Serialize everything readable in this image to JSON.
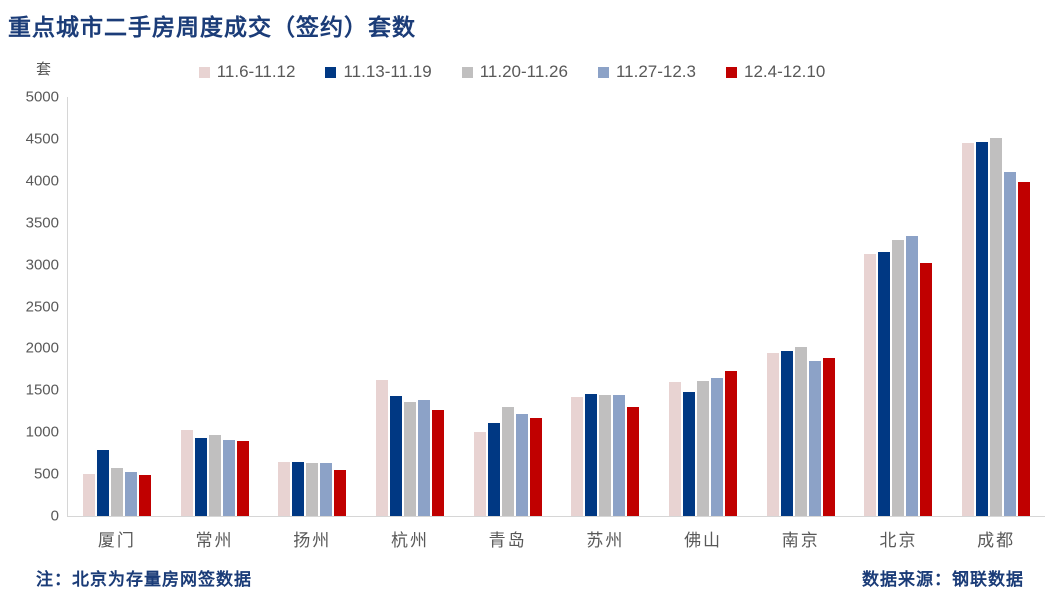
{
  "title": {
    "text": "重点城市二手房周度成交（签约）套数",
    "color": "#1b3c78"
  },
  "footer": {
    "note": "注：北京为存量房网签数据",
    "source": "数据来源：钢联数据"
  },
  "chart_data": {
    "type": "bar",
    "title": "重点城市二手房周度成交（签约）套数",
    "unit_label": "套",
    "xlabel": "",
    "ylabel": "套",
    "ylim": [
      0,
      5000
    ],
    "ytick_step": 500,
    "grid": false,
    "legend_position": "top",
    "categories": [
      "厦门",
      "常州",
      "扬州",
      "杭州",
      "青岛",
      "苏州",
      "佛山",
      "南京",
      "北京",
      "成都"
    ],
    "series": [
      {
        "name": "11.6-11.12",
        "color": "#e8d3d2",
        "values": [
          500,
          1030,
          645,
          1620,
          1000,
          1415,
          1600,
          1950,
          3130,
          4450
        ]
      },
      {
        "name": "11.13-11.19",
        "color": "#003883",
        "values": [
          790,
          935,
          650,
          1435,
          1105,
          1455,
          1480,
          1975,
          3150,
          4460
        ]
      },
      {
        "name": "11.20-11.26",
        "color": "#c0bfbf",
        "values": [
          570,
          970,
          630,
          1360,
          1305,
          1440,
          1610,
          2020,
          3290,
          4510
        ]
      },
      {
        "name": "11.27-12.3",
        "color": "#8ca2c7",
        "values": [
          520,
          910,
          635,
          1380,
          1220,
          1440,
          1650,
          1850,
          3340,
          4100
        ]
      },
      {
        "name": "12.4-12.10",
        "color": "#c00000",
        "values": [
          490,
          895,
          550,
          1265,
          1165,
          1300,
          1735,
          1885,
          3020,
          3980
        ]
      }
    ],
    "axis_text_color": "#595959",
    "axis_line_color": "#d6d6d6"
  }
}
